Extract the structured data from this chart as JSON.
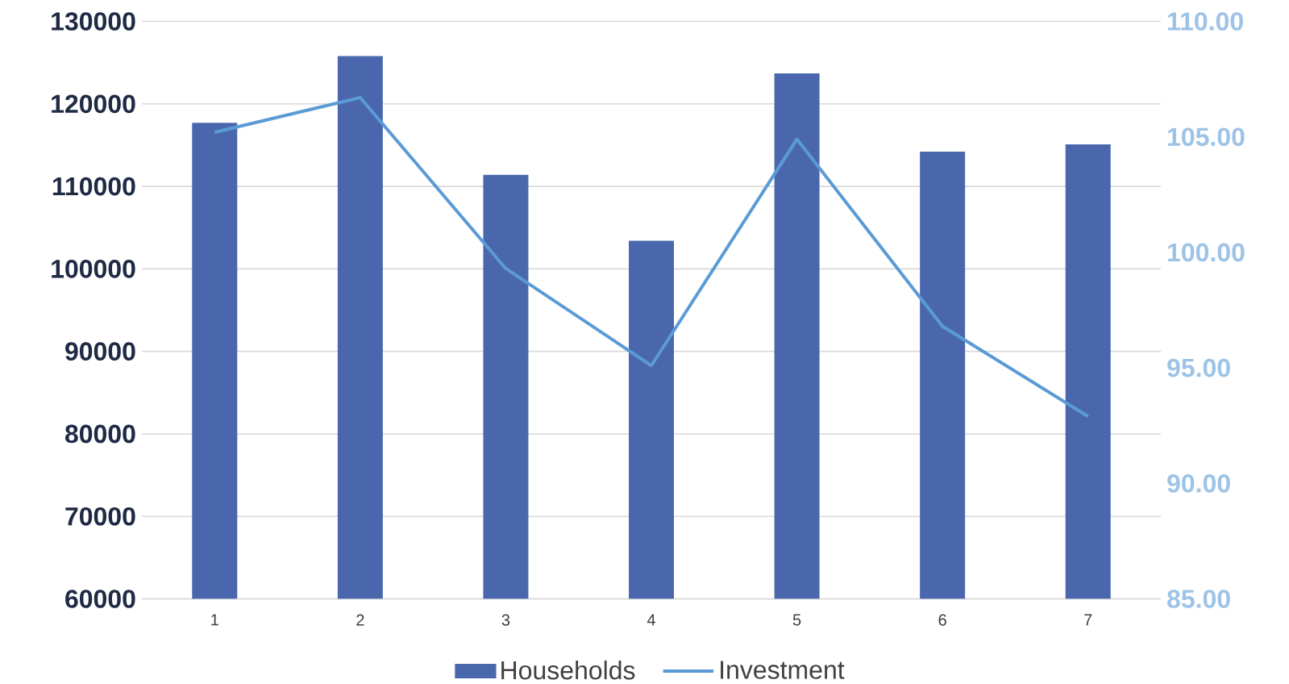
{
  "chart_data": {
    "type": "bar",
    "categories": [
      "1",
      "2",
      "3",
      "4",
      "5",
      "6",
      "7"
    ],
    "series": [
      {
        "name": "Households",
        "color": "#4a67ae",
        "values": [
          117700,
          125800,
          111400,
          103400,
          123700,
          114200,
          115100
        ]
      },
      {
        "name": "Investment",
        "type": "line",
        "axis": "y2",
        "color": "#5b9bd5",
        "values": [
          105.2,
          106.7,
          99.3,
          95.1,
          104.9,
          96.8,
          92.9
        ]
      }
    ],
    "ylim": [
      60000,
      130000
    ],
    "yticks": [
      60000,
      70000,
      80000,
      90000,
      100000,
      110000,
      120000,
      130000
    ],
    "y2lim": [
      85,
      110
    ],
    "y2ticks": [
      {
        "value": 85,
        "label": "85.00"
      },
      {
        "value": 90,
        "label": "90.00"
      },
      {
        "value": 95,
        "label": "95.00"
      },
      {
        "value": 100,
        "label": "100.00"
      },
      {
        "value": 105,
        "label": "105.00"
      },
      {
        "value": 110,
        "label": "110.00"
      }
    ],
    "grid": "y",
    "legend": "bottom"
  }
}
